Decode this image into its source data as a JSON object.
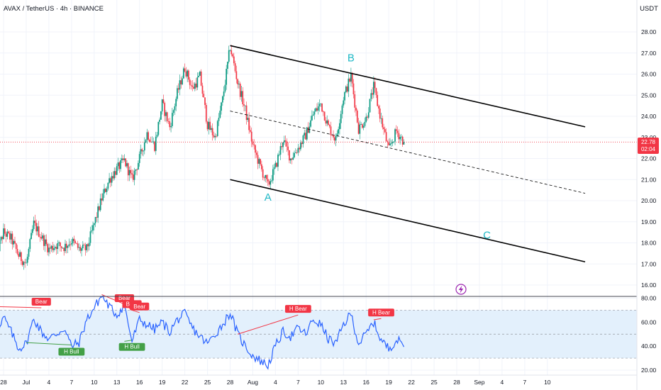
{
  "header": {
    "title": "AVAX / TetherUS · 4h · BINANCE",
    "currency": "USDT"
  },
  "price_badge": {
    "price": "22.78",
    "countdown": "02:04",
    "color": "#f23645"
  },
  "colors": {
    "up": "#089981",
    "down": "#f23645",
    "channel": "#000000",
    "rsi_line": "#2962ff",
    "rsi_band": "#e3f0fc",
    "wave_label": "#1fb8c6",
    "bull": "#43a047",
    "bear": "#f23645"
  },
  "icons": [
    "lightning-icon"
  ],
  "chart_data": [
    {
      "type": "candlestick",
      "title": "AVAX / TetherUS · 4h · BINANCE",
      "y_unit": "USDT",
      "ylim": [
        15.6,
        28.8
      ],
      "y_ticks": [
        16,
        17,
        18,
        19,
        20,
        21,
        22,
        23,
        24,
        25,
        26,
        27,
        28
      ],
      "y_tick_labels": [
        "16.00",
        "17.00",
        "18.00",
        "19.00",
        "20.00",
        "21.00",
        "22.00",
        "23.00",
        "24.00",
        "25.00",
        "26.00",
        "27.00",
        "28.00"
      ],
      "x_tick_labels": [
        "28",
        "Jul",
        "4",
        "7",
        "10",
        "13",
        "16",
        "19",
        "22",
        "25",
        "28",
        "Aug",
        "4",
        "7",
        "10",
        "13",
        "16",
        "19",
        "22",
        "25",
        "28",
        "Sep",
        "4",
        "7",
        "10"
      ],
      "last_price": 22.78,
      "close_path": [
        [
          "2024-06-27",
          17.4
        ],
        [
          "2024-06-28",
          18.5
        ],
        [
          "2024-06-29",
          18.2
        ],
        [
          "2024-06-30",
          17.4
        ],
        [
          "2024-07-01",
          17.0
        ],
        [
          "2024-07-02",
          18.9
        ],
        [
          "2024-07-03",
          18.3
        ],
        [
          "2024-07-04",
          17.7
        ],
        [
          "2024-07-05",
          17.9
        ],
        [
          "2024-07-06",
          17.8
        ],
        [
          "2024-07-07",
          18.1
        ],
        [
          "2024-07-08",
          17.7
        ],
        [
          "2024-07-09",
          17.7
        ],
        [
          "2024-07-10",
          18.9
        ],
        [
          "2024-07-11",
          20.1
        ],
        [
          "2024-07-12",
          21.0
        ],
        [
          "2024-07-13",
          21.5
        ],
        [
          "2024-07-14",
          21.9
        ],
        [
          "2024-07-15",
          21.0
        ],
        [
          "2024-07-16",
          22.0
        ],
        [
          "2024-07-17",
          23.2
        ],
        [
          "2024-07-18",
          22.6
        ],
        [
          "2024-07-19",
          24.6
        ],
        [
          "2024-07-20",
          23.5
        ],
        [
          "2024-07-21",
          25.1
        ],
        [
          "2024-07-22",
          26.3
        ],
        [
          "2024-07-23",
          25.3
        ],
        [
          "2024-07-24",
          25.9
        ],
        [
          "2024-07-25",
          23.6
        ],
        [
          "2024-07-26",
          23.0
        ],
        [
          "2024-07-27",
          24.8
        ],
        [
          "2024-07-28",
          27.3
        ],
        [
          "2024-07-29",
          25.6
        ],
        [
          "2024-07-30",
          24.3
        ],
        [
          "2024-07-31",
          22.6
        ],
        [
          "2024-08-01",
          21.6
        ],
        [
          "2024-08-02",
          20.7
        ],
        [
          "2024-08-03",
          21.6
        ],
        [
          "2024-08-04",
          22.9
        ],
        [
          "2024-08-05",
          22.0
        ],
        [
          "2024-08-06",
          22.5
        ],
        [
          "2024-08-07",
          23.1
        ],
        [
          "2024-08-08",
          24.1
        ],
        [
          "2024-08-09",
          24.6
        ],
        [
          "2024-08-10",
          23.5
        ],
        [
          "2024-08-11",
          22.9
        ],
        [
          "2024-08-12",
          24.9
        ],
        [
          "2024-08-13",
          25.9
        ],
        [
          "2024-08-14",
          23.4
        ],
        [
          "2024-08-15",
          23.9
        ],
        [
          "2024-08-16",
          25.4
        ],
        [
          "2024-08-17",
          23.8
        ],
        [
          "2024-08-18",
          22.4
        ],
        [
          "2024-08-19",
          23.3
        ],
        [
          "2024-08-20",
          22.8
        ]
      ],
      "channel": {
        "upper": [
          [
            "2024-07-28",
            27.35
          ],
          [
            "2024-09-13",
            23.5
          ]
        ],
        "middle": [
          [
            "2024-07-28",
            24.25
          ],
          [
            "2024-09-13",
            20.35
          ]
        ],
        "lower": [
          [
            "2024-07-28",
            21.0
          ],
          [
            "2024-09-13",
            17.1
          ]
        ]
      },
      "wave_labels": [
        {
          "text": "A",
          "date": "2024-08-02",
          "price": 20.0
        },
        {
          "text": "B",
          "date": "2024-08-13",
          "price": 26.6
        },
        {
          "text": "C",
          "date": "2024-08-31",
          "price": 18.2
        }
      ]
    },
    {
      "type": "line",
      "ylim": [
        16,
        86
      ],
      "y_ticks": [
        20,
        40,
        60,
        80
      ],
      "y_tick_labels": [
        "20.00",
        "40.00",
        "60.00",
        "80.00"
      ],
      "band": [
        30,
        70
      ],
      "midline": 50,
      "series": [
        {
          "values": [
            [
              "2024-06-27",
              45
            ],
            [
              "2024-06-28",
              64
            ],
            [
              "2024-06-29",
              52
            ],
            [
              "2024-06-30",
              38
            ],
            [
              "2024-07-01",
              42
            ],
            [
              "2024-07-02",
              63
            ],
            [
              "2024-07-03",
              52
            ],
            [
              "2024-07-04",
              46
            ],
            [
              "2024-07-05",
              50
            ],
            [
              "2024-07-06",
              55
            ],
            [
              "2024-07-07",
              40
            ],
            [
              "2024-07-08",
              43
            ],
            [
              "2024-07-09",
              62
            ],
            [
              "2024-07-10",
              72
            ],
            [
              "2024-07-11",
              82
            ],
            [
              "2024-07-12",
              73
            ],
            [
              "2024-07-13",
              66
            ],
            [
              "2024-07-14",
              74
            ],
            [
              "2024-07-15",
              44
            ],
            [
              "2024-07-16",
              62
            ],
            [
              "2024-07-17",
              58
            ],
            [
              "2024-07-18",
              54
            ],
            [
              "2024-07-19",
              60
            ],
            [
              "2024-07-20",
              52
            ],
            [
              "2024-07-21",
              62
            ],
            [
              "2024-07-22",
              67
            ],
            [
              "2024-07-23",
              55
            ],
            [
              "2024-07-24",
              48
            ],
            [
              "2024-07-25",
              42
            ],
            [
              "2024-07-26",
              50
            ],
            [
              "2024-07-27",
              58
            ],
            [
              "2024-07-28",
              68
            ],
            [
              "2024-07-29",
              50
            ],
            [
              "2024-07-30",
              40
            ],
            [
              "2024-07-31",
              32
            ],
            [
              "2024-08-01",
              28
            ],
            [
              "2024-08-02",
              24
            ],
            [
              "2024-08-03",
              40
            ],
            [
              "2024-08-04",
              52
            ],
            [
              "2024-08-05",
              48
            ],
            [
              "2024-08-06",
              55
            ],
            [
              "2024-08-07",
              50
            ],
            [
              "2024-08-08",
              62
            ],
            [
              "2024-08-09",
              58
            ],
            [
              "2024-08-10",
              46
            ],
            [
              "2024-08-11",
              42
            ],
            [
              "2024-08-12",
              58
            ],
            [
              "2024-08-13",
              67
            ],
            [
              "2024-08-14",
              42
            ],
            [
              "2024-08-15",
              50
            ],
            [
              "2024-08-16",
              60
            ],
            [
              "2024-08-17",
              45
            ],
            [
              "2024-08-18",
              38
            ],
            [
              "2024-08-19",
              45
            ],
            [
              "2024-08-20",
              42
            ]
          ]
        }
      ],
      "divergences": [
        {
          "text": "Bear",
          "kind": "bear",
          "from": [
            "2024-06-27",
            73
          ],
          "to": [
            "2024-07-03",
            72
          ]
        },
        {
          "text": "H Bull",
          "kind": "bull",
          "from": [
            "2024-07-01",
            43
          ],
          "to": [
            "2024-07-07",
            41
          ]
        },
        {
          "text": "Bear",
          "kind": "bear",
          "from": [
            "2024-07-11",
            83
          ],
          "to": [
            "2024-07-14",
            75
          ]
        },
        {
          "text": "Bear",
          "kind": "bear",
          "from": [
            "2024-07-14",
            75
          ],
          "to": [
            "2024-07-15",
            70
          ]
        },
        {
          "text": "Bear",
          "kind": "bear",
          "from": [
            "2024-07-15",
            70
          ],
          "to": [
            "2024-07-16",
            68
          ]
        },
        {
          "text": "H Bull",
          "kind": "bull",
          "from": [
            "2024-07-14",
            44
          ],
          "to": [
            "2024-07-15",
            45
          ]
        },
        {
          "text": "H Bear",
          "kind": "bear",
          "from": [
            "2024-07-29",
            50
          ],
          "to": [
            "2024-08-06",
            66
          ]
        },
        {
          "text": "H Bear",
          "kind": "bear",
          "from": [
            "2024-08-16",
            62
          ],
          "to": [
            "2024-08-17",
            63
          ]
        }
      ]
    }
  ]
}
